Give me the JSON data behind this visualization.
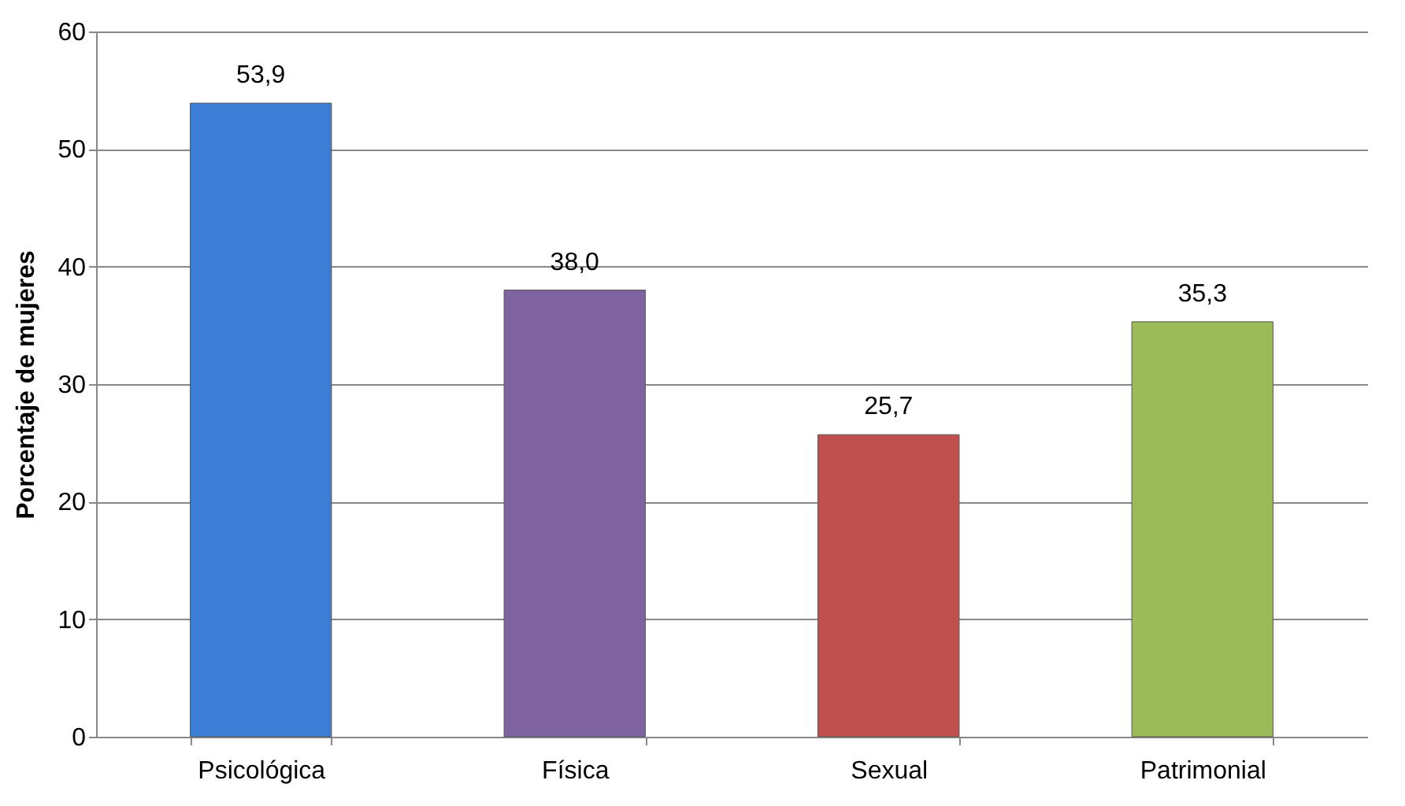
{
  "chart_data": {
    "type": "bar",
    "ylabel": "Porcentaje de mujeres",
    "categories": [
      "Psicológica",
      "Física",
      "Sexual",
      "Patrimonial"
    ],
    "values": [
      53.9,
      38.0,
      25.7,
      35.3
    ],
    "colors": [
      "#3a7fd5",
      "#8064a2",
      "#c0504d",
      "#9bbb59"
    ],
    "value_labels": [
      "53,9",
      "38,0",
      "25,7",
      "35,3"
    ],
    "ylim": [
      0,
      60
    ],
    "yticks": [
      0,
      10,
      20,
      30,
      40,
      50,
      60
    ],
    "grid": "y"
  }
}
